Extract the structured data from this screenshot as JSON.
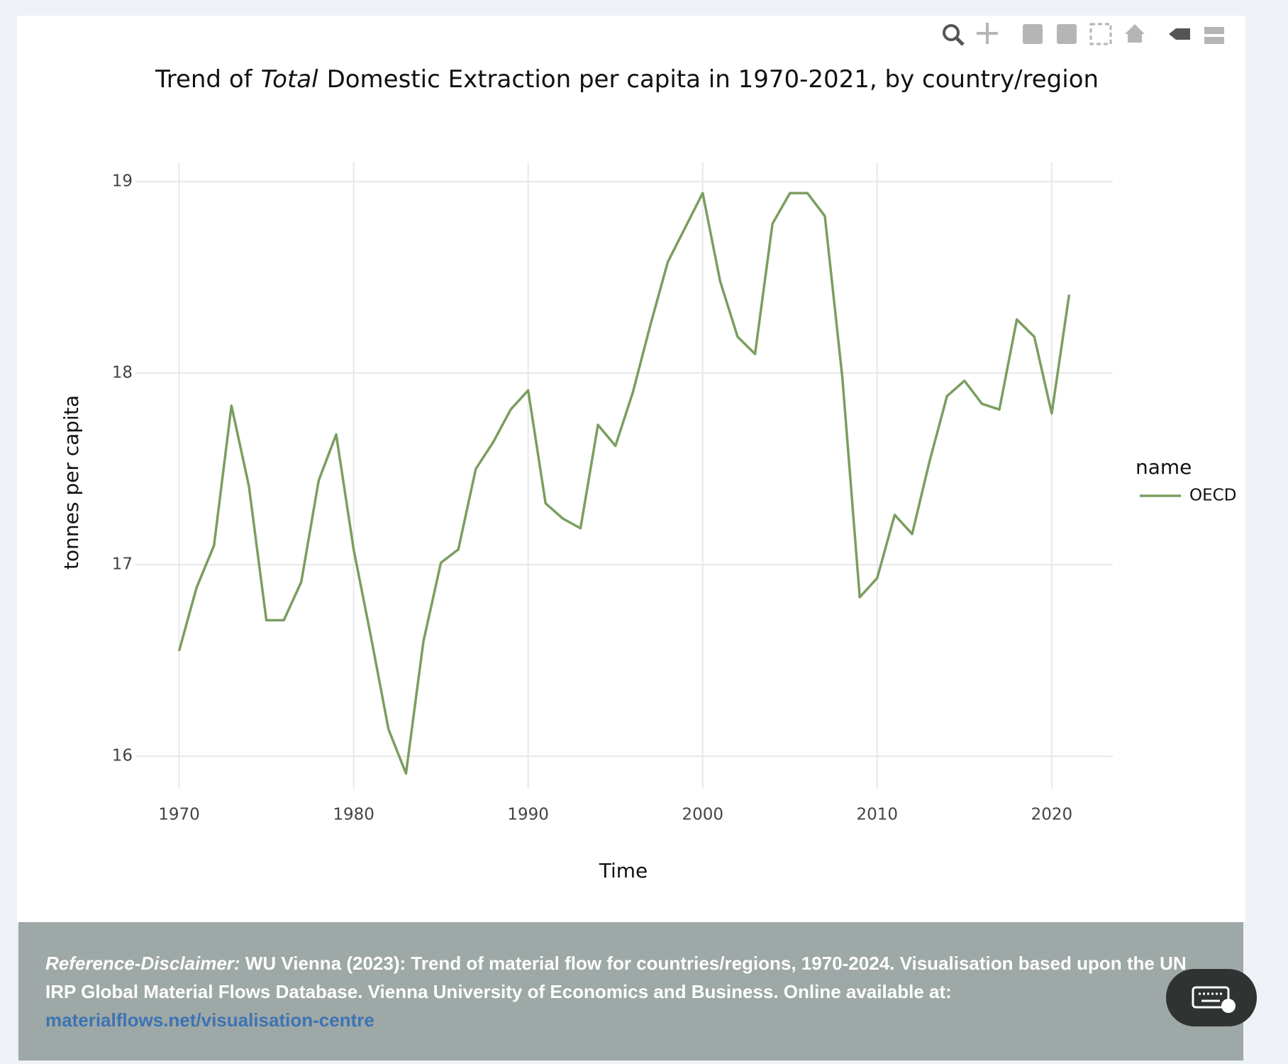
{
  "chart_data": {
    "type": "line",
    "title": {
      "prefix": "Trend of",
      "emphasis": "Total",
      "rest": "Domestic Extraction per capita in 1970-2021, by country/region"
    },
    "x_label": "Time",
    "y_label": "tonnes per capita",
    "legend_title": "name",
    "legend_position": "right",
    "grid": true,
    "x": [
      1970,
      1971,
      1972,
      1973,
      1974,
      1975,
      1976,
      1977,
      1978,
      1979,
      1980,
      1981,
      1982,
      1983,
      1984,
      1985,
      1986,
      1987,
      1988,
      1989,
      1990,
      1991,
      1992,
      1993,
      1994,
      1995,
      1996,
      1997,
      1998,
      1999,
      2000,
      2001,
      2002,
      2003,
      2004,
      2005,
      2006,
      2007,
      2008,
      2009,
      2010,
      2011,
      2012,
      2013,
      2014,
      2015,
      2016,
      2017,
      2018,
      2019,
      2020,
      2021
    ],
    "series": [
      {
        "name": "OECD",
        "color": "#7a9e5f",
        "values": [
          16.55,
          16.88,
          17.1,
          17.83,
          17.41,
          16.71,
          16.71,
          16.91,
          17.44,
          17.68,
          17.08,
          16.62,
          16.14,
          15.91,
          16.6,
          17.01,
          17.08,
          17.5,
          17.64,
          17.81,
          17.91,
          17.32,
          17.24,
          17.19,
          17.73,
          17.62,
          17.9,
          18.25,
          18.58,
          18.76,
          18.94,
          18.48,
          18.19,
          18.1,
          18.78,
          18.94,
          18.94,
          18.82,
          17.98,
          16.83,
          16.93,
          17.26,
          17.16,
          17.54,
          17.88,
          17.96,
          17.84,
          17.81,
          18.28,
          18.19,
          17.79,
          18.41
        ]
      }
    ],
    "xlim": [
      1967.5,
      2023.5
    ],
    "xticks": [
      1970,
      1980,
      1990,
      2000,
      2010,
      2020
    ],
    "ylim": [
      15.83,
      19.1
    ],
    "yticks": [
      16,
      17,
      18,
      19
    ]
  },
  "footer": {
    "label": "Reference-Disclaimer:",
    "text": "WU Vienna (2023): Trend of material flow for countries/regions, 1970-2024. Visualisation based upon the UN IRP Global Material Flows Database. Vienna University of Economics and Business. Online available at:",
    "link": "materialflows.net/visualisation-centre"
  }
}
